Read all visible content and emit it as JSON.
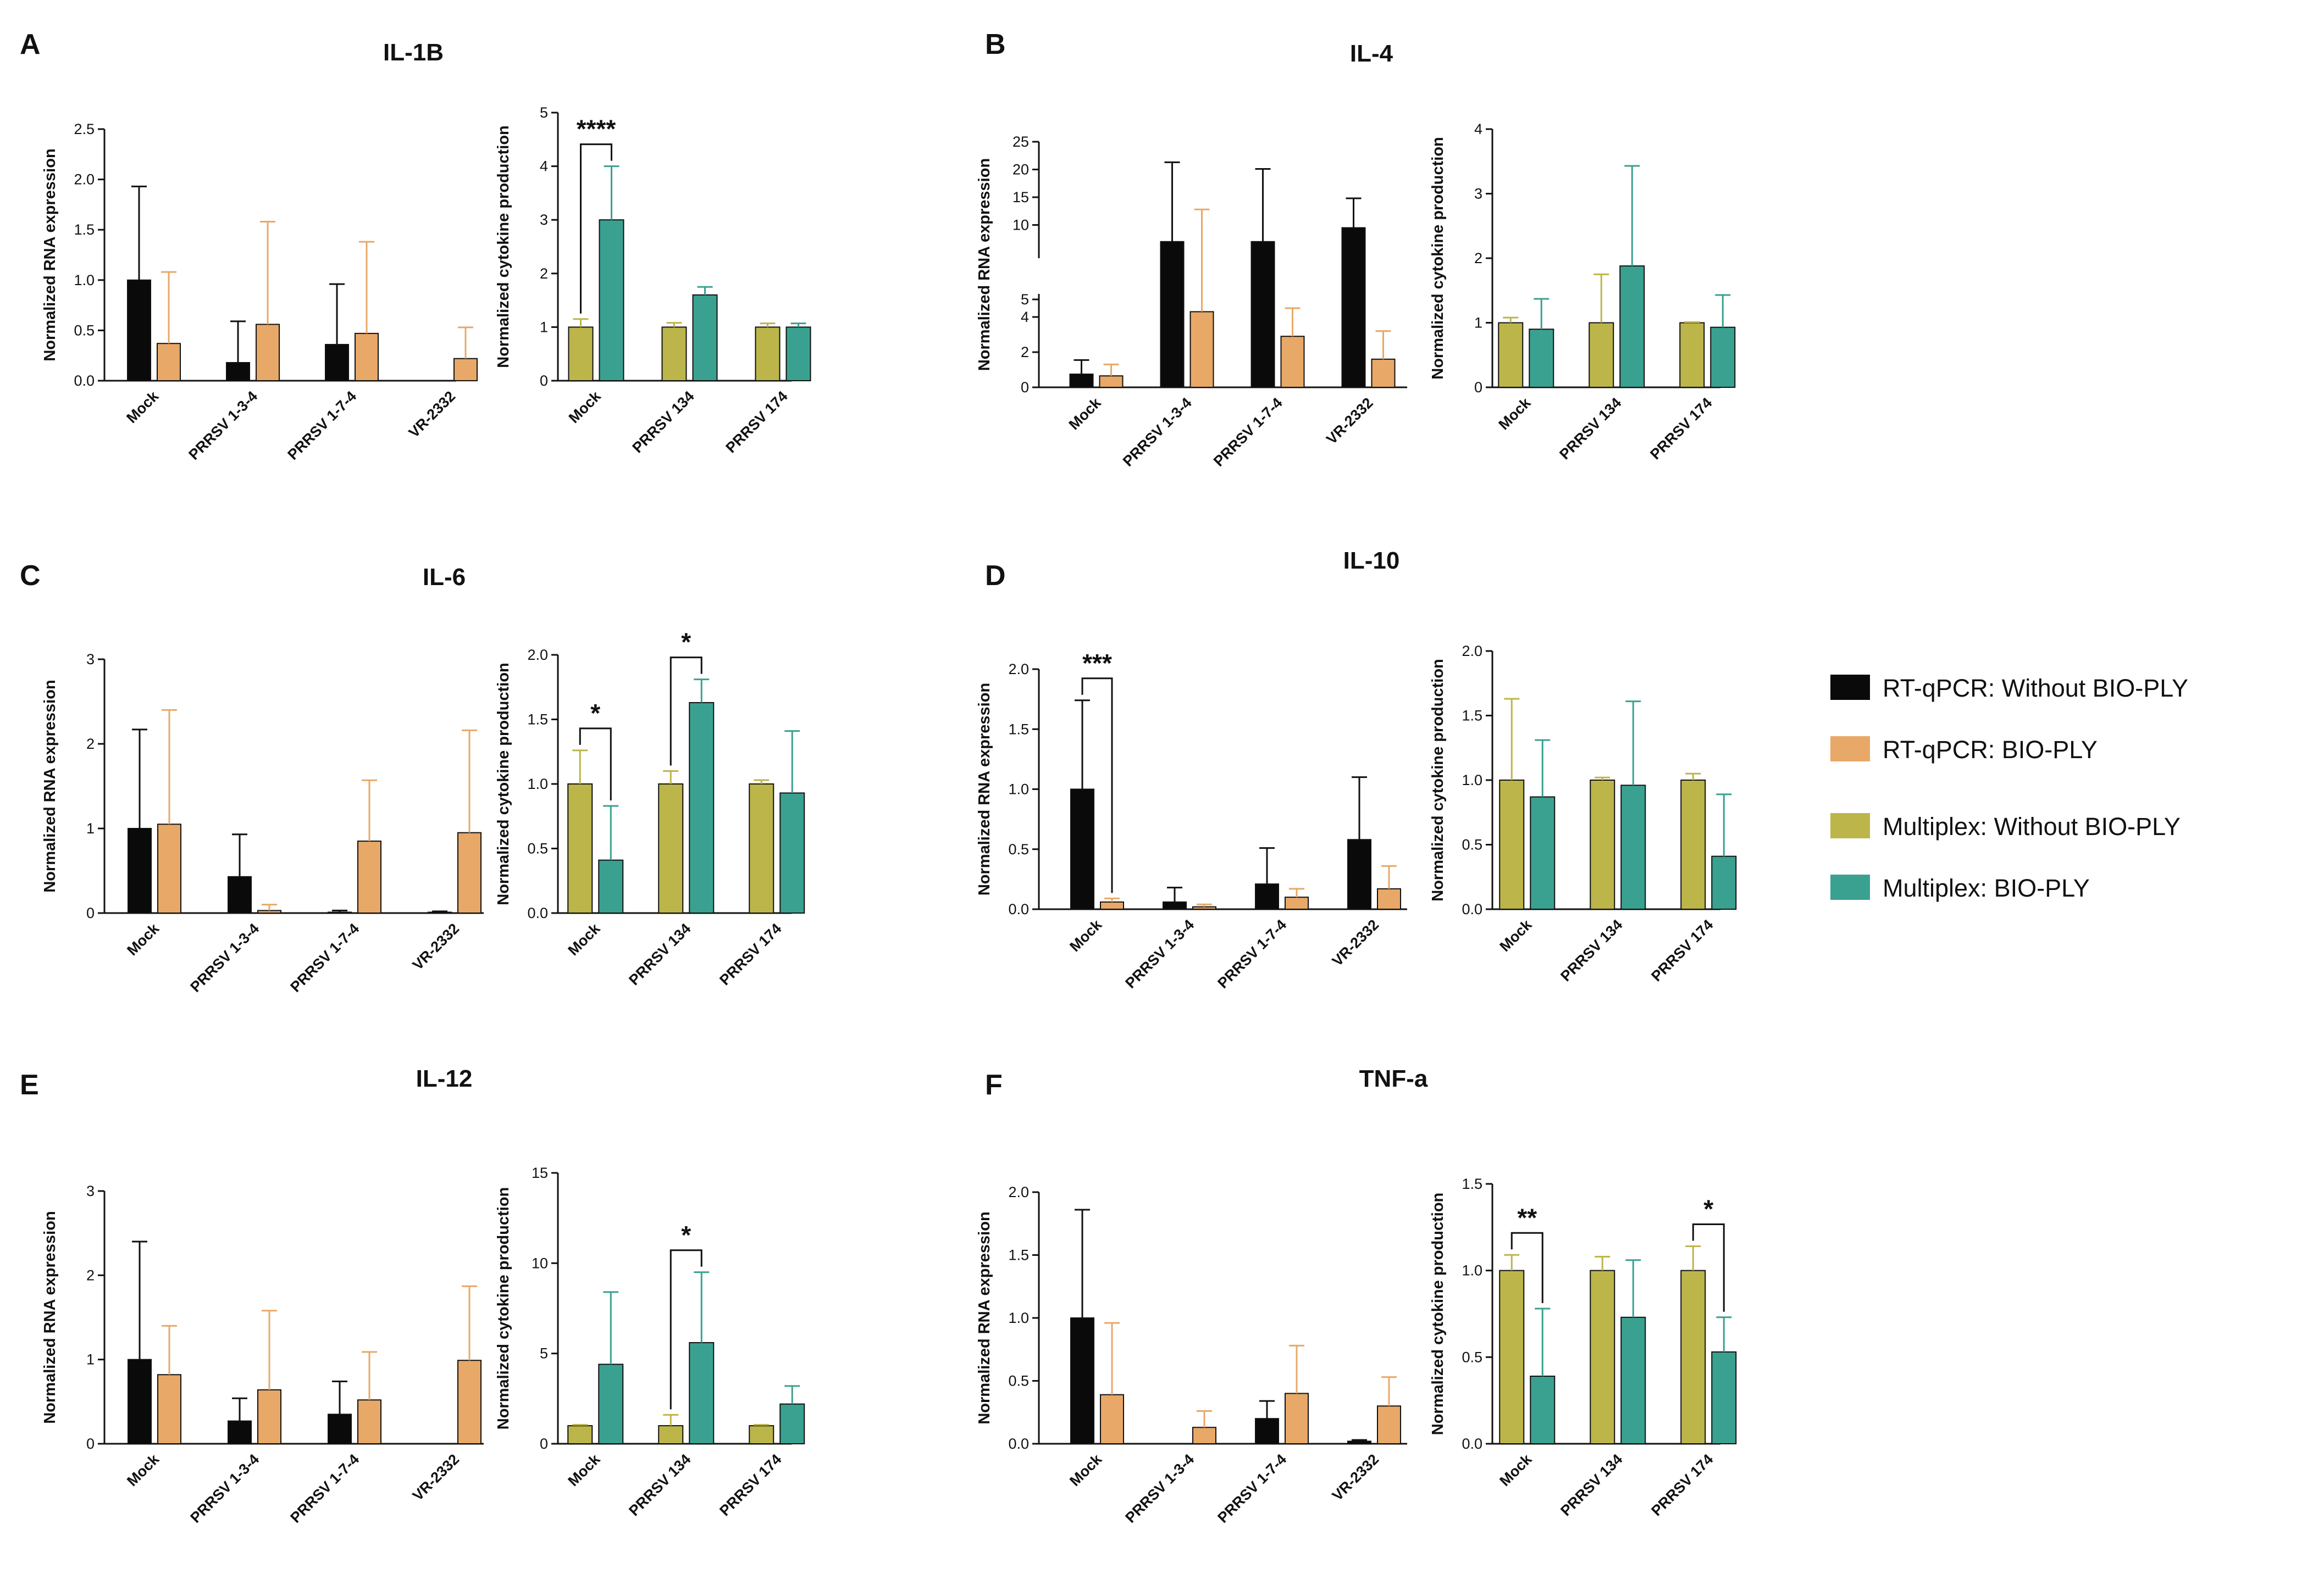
{
  "colors": {
    "rt_without": "#0a0a0a",
    "rt_bio": "#e8a867",
    "mx_without": "#bcb54a",
    "mx_bio": "#3aa191",
    "axis": "#111111"
  },
  "legend": [
    {
      "key": "rt_without",
      "label": "RT-qPCR: Without BIO-PLY"
    },
    {
      "key": "rt_bio",
      "label": "RT-qPCR: BIO-PLY"
    },
    {
      "key": "mx_without",
      "label": "Multiplex: Without BIO-PLY"
    },
    {
      "key": "mx_bio",
      "label": "Multiplex: BIO-PLY"
    }
  ],
  "panels": [
    {
      "letter": "A",
      "title": "IL-1B"
    },
    {
      "letter": "B",
      "title": "IL-4"
    },
    {
      "letter": "C",
      "title": "IL-6"
    },
    {
      "letter": "D",
      "title": "IL-10"
    },
    {
      "letter": "E",
      "title": "IL-12"
    },
    {
      "letter": "F",
      "title": "TNF-a"
    }
  ],
  "chart_data": [
    {
      "panel": "A",
      "title": "IL-1B",
      "type": "bar",
      "ylabel": "Normalized RNA expression",
      "categories": [
        "Mock",
        "PRRSV 1-3-4",
        "PRRSV 1-7-4",
        "VR-2332"
      ],
      "ylim": [
        0,
        2.5
      ],
      "yticks": [
        "0.0",
        "0.5",
        "1.0",
        "1.5",
        "2.0",
        "2.5"
      ],
      "series": [
        {
          "name": "RT-qPCR: Without BIO-PLY",
          "color_key": "rt_without",
          "values": [
            1.0,
            0.18,
            0.36,
            0
          ],
          "errors": [
            0.93,
            0.41,
            0.6,
            0
          ]
        },
        {
          "name": "RT-qPCR: BIO-PLY",
          "color_key": "rt_bio",
          "values": [
            0.37,
            0.56,
            0.47,
            0.22
          ],
          "errors": [
            0.71,
            1.02,
            0.91,
            0.31
          ]
        }
      ],
      "sig": []
    },
    {
      "panel": "A",
      "title": "IL-1B",
      "type": "bar",
      "ylabel": "Normalized cytokine production",
      "categories": [
        "Mock",
        "PRRSV 134",
        "PRRSV 174"
      ],
      "ylim": [
        0,
        5
      ],
      "yticks": [
        "0",
        "1",
        "2",
        "3",
        "4",
        "5"
      ],
      "series": [
        {
          "name": "Multiplex: Without BIO-PLY",
          "color_key": "mx_without",
          "values": [
            1.0,
            1.0,
            1.0
          ],
          "errors": [
            0.15,
            0.08,
            0.07
          ]
        },
        {
          "name": "Multiplex: BIO-PLY",
          "color_key": "mx_bio",
          "values": [
            3.0,
            1.6,
            1.0
          ],
          "errors": [
            1.0,
            0.15,
            0.07
          ]
        }
      ],
      "sig": [
        {
          "category": 0,
          "label": "****"
        }
      ]
    },
    {
      "panel": "B",
      "title": "IL-4",
      "type": "bar",
      "ylabel": "Normalized RNA expression",
      "broken_axis": true,
      "categories": [
        "Mock",
        "PRRSV 1-3-4",
        "PRRSV 1-7-4",
        "VR-2332"
      ],
      "ylim": [
        0,
        25
      ],
      "yticks": [
        "0",
        "2",
        "4",
        "5",
        "10",
        "15",
        "20",
        "25"
      ],
      "series": [
        {
          "name": "RT-qPCR: Without BIO-PLY",
          "color_key": "rt_without",
          "values": [
            0.75,
            7,
            7,
            9.5
          ],
          "errors": [
            0.8,
            14.3,
            13.1,
            5.3
          ]
        },
        {
          "name": "RT-qPCR: BIO-PLY",
          "color_key": "rt_bio",
          "values": [
            0.65,
            4.3,
            2.9,
            1.6
          ],
          "errors": [
            0.65,
            8.5,
            1.6,
            1.6
          ]
        }
      ],
      "sig": []
    },
    {
      "panel": "B",
      "title": "IL-4",
      "type": "bar",
      "ylabel": "Normalized cytokine production",
      "categories": [
        "Mock",
        "PRRSV 134",
        "PRRSV 174"
      ],
      "ylim": [
        0,
        4
      ],
      "yticks": [
        "0",
        "1",
        "2",
        "3",
        "4"
      ],
      "series": [
        {
          "name": "Multiplex: Without BIO-PLY",
          "color_key": "mx_without",
          "values": [
            1.0,
            1.0,
            1.0
          ],
          "errors": [
            0.08,
            0.75,
            0.01
          ]
        },
        {
          "name": "Multiplex: BIO-PLY",
          "color_key": "mx_bio",
          "values": [
            0.9,
            1.88,
            0.93
          ],
          "errors": [
            0.47,
            1.55,
            0.5
          ]
        }
      ],
      "sig": []
    },
    {
      "panel": "C",
      "title": "IL-6",
      "type": "bar",
      "ylabel": "Normalized RNA expression",
      "categories": [
        "Mock",
        "PRRSV 1-3-4",
        "PRRSV 1-7-4",
        "VR-2332"
      ],
      "ylim": [
        0,
        3
      ],
      "yticks": [
        "0",
        "1",
        "2",
        "3"
      ],
      "series": [
        {
          "name": "RT-qPCR: Without BIO-PLY",
          "color_key": "rt_without",
          "values": [
            1.0,
            0.43,
            0.01,
            0.01
          ],
          "errors": [
            1.17,
            0.5,
            0.02,
            0.01
          ]
        },
        {
          "name": "RT-qPCR: BIO-PLY",
          "color_key": "rt_bio",
          "values": [
            1.05,
            0.03,
            0.85,
            0.95
          ],
          "errors": [
            1.35,
            0.07,
            0.72,
            1.21
          ]
        }
      ],
      "sig": []
    },
    {
      "panel": "C",
      "title": "IL-6",
      "type": "bar",
      "ylabel": "Normalized cytokine production",
      "categories": [
        "Mock",
        "PRRSV 134",
        "PRRSV 174"
      ],
      "ylim": [
        0,
        2.0
      ],
      "yticks": [
        "0.0",
        "0.5",
        "1.0",
        "1.5",
        "2.0"
      ],
      "series": [
        {
          "name": "Multiplex: Without BIO-PLY",
          "color_key": "mx_without",
          "values": [
            1.0,
            1.0,
            1.0
          ],
          "errors": [
            0.26,
            0.1,
            0.03
          ]
        },
        {
          "name": "Multiplex: BIO-PLY",
          "color_key": "mx_bio",
          "values": [
            0.41,
            1.63,
            0.93
          ],
          "errors": [
            0.42,
            0.18,
            0.48
          ]
        }
      ],
      "sig": [
        {
          "category": 0,
          "label": "*"
        },
        {
          "category": 1,
          "label": "*"
        }
      ]
    },
    {
      "panel": "D",
      "title": "IL-10",
      "type": "bar",
      "ylabel": "Normalized RNA expression",
      "categories": [
        "Mock",
        "PRRSV 1-3-4",
        "PRRSV 1-7-4",
        "VR-2332"
      ],
      "ylim": [
        0,
        2.0
      ],
      "yticks": [
        "0.0",
        "0.5",
        "1.0",
        "1.5",
        "2.0"
      ],
      "series": [
        {
          "name": "RT-qPCR: Without BIO-PLY",
          "color_key": "rt_without",
          "values": [
            1.0,
            0.06,
            0.21,
            0.58
          ],
          "errors": [
            0.74,
            0.12,
            0.3,
            0.52
          ]
        },
        {
          "name": "RT-qPCR: BIO-PLY",
          "color_key": "rt_bio",
          "values": [
            0.06,
            0.02,
            0.1,
            0.17
          ],
          "errors": [
            0.03,
            0.02,
            0.07,
            0.19
          ]
        }
      ],
      "sig": [
        {
          "category": 0,
          "label": "***"
        }
      ]
    },
    {
      "panel": "D",
      "title": "IL-10",
      "type": "bar",
      "ylabel": "Normalized cytokine production",
      "categories": [
        "Mock",
        "PRRSV 134",
        "PRRSV 174"
      ],
      "ylim": [
        0,
        2.0
      ],
      "yticks": [
        "0.0",
        "0.5",
        "1.0",
        "1.5",
        "2.0"
      ],
      "series": [
        {
          "name": "Multiplex: Without BIO-PLY",
          "color_key": "mx_without",
          "values": [
            1.0,
            1.0,
            1.0
          ],
          "errors": [
            0.63,
            0.02,
            0.05
          ]
        },
        {
          "name": "Multiplex: BIO-PLY",
          "color_key": "mx_bio",
          "values": [
            0.87,
            0.96,
            0.41
          ],
          "errors": [
            0.44,
            0.65,
            0.48
          ]
        }
      ],
      "sig": []
    },
    {
      "panel": "E",
      "title": "IL-12",
      "type": "bar",
      "ylabel": "Normalized RNA expression",
      "categories": [
        "Mock",
        "PRRSV 1-3-4",
        "PRRSV 1-7-4",
        "VR-2332"
      ],
      "ylim": [
        0,
        3
      ],
      "yticks": [
        "0",
        "1",
        "2",
        "3"
      ],
      "series": [
        {
          "name": "RT-qPCR: Without BIO-PLY",
          "color_key": "rt_without",
          "values": [
            1.0,
            0.27,
            0.35,
            0
          ],
          "errors": [
            1.4,
            0.27,
            0.39,
            0
          ]
        },
        {
          "name": "RT-qPCR: BIO-PLY",
          "color_key": "rt_bio",
          "values": [
            0.82,
            0.64,
            0.52,
            0.99
          ],
          "errors": [
            0.58,
            0.94,
            0.57,
            0.88
          ]
        }
      ],
      "sig": []
    },
    {
      "panel": "E",
      "title": "IL-12",
      "type": "bar",
      "ylabel": "Normalized cytokine production",
      "categories": [
        "Mock",
        "PRRSV 134",
        "PRRSV 174"
      ],
      "ylim": [
        0,
        15
      ],
      "yticks": [
        "0",
        "5",
        "10",
        "15"
      ],
      "series": [
        {
          "name": "Multiplex: Without BIO-PLY",
          "color_key": "mx_without",
          "values": [
            1.0,
            1.0,
            1.0
          ],
          "errors": [
            0.05,
            0.6,
            0.05
          ]
        },
        {
          "name": "Multiplex: BIO-PLY",
          "color_key": "mx_bio",
          "values": [
            4.4,
            5.6,
            2.2
          ],
          "errors": [
            4.0,
            3.9,
            1.0
          ]
        }
      ],
      "sig": [
        {
          "category": 1,
          "label": "*"
        }
      ]
    },
    {
      "panel": "F",
      "title": "TNF-a",
      "type": "bar",
      "ylabel": "Normalized RNA expression",
      "categories": [
        "Mock",
        "PRRSV 1-3-4",
        "PRRSV 1-7-4",
        "VR-2332"
      ],
      "ylim": [
        0,
        2.0
      ],
      "yticks": [
        "0.0",
        "0.5",
        "1.0",
        "1.5",
        "2.0"
      ],
      "series": [
        {
          "name": "RT-qPCR: Without BIO-PLY",
          "color_key": "rt_without",
          "values": [
            1.0,
            0,
            0.2,
            0.02
          ],
          "errors": [
            0.86,
            0,
            0.14,
            0.01
          ]
        },
        {
          "name": "RT-qPCR: BIO-PLY",
          "color_key": "rt_bio",
          "values": [
            0.39,
            0.13,
            0.4,
            0.3
          ],
          "errors": [
            0.57,
            0.13,
            0.38,
            0.23
          ]
        }
      ],
      "sig": []
    },
    {
      "panel": "F",
      "title": "TNF-a",
      "type": "bar",
      "ylabel": "Normalized cytokine production",
      "categories": [
        "Mock",
        "PRRSV 134",
        "PRRSV 174"
      ],
      "ylim": [
        0,
        1.5
      ],
      "yticks": [
        "0.0",
        "0.5",
        "1.0",
        "1.5"
      ],
      "series": [
        {
          "name": "Multiplex: Without BIO-PLY",
          "color_key": "mx_without",
          "values": [
            1.0,
            1.0,
            1.0
          ],
          "errors": [
            0.09,
            0.08,
            0.14
          ]
        },
        {
          "name": "Multiplex: BIO-PLY",
          "color_key": "mx_bio",
          "values": [
            0.39,
            0.73,
            0.53
          ],
          "errors": [
            0.39,
            0.33,
            0.2
          ]
        }
      ],
      "sig": [
        {
          "category": 0,
          "label": "**"
        },
        {
          "category": 2,
          "label": "*"
        }
      ]
    }
  ]
}
